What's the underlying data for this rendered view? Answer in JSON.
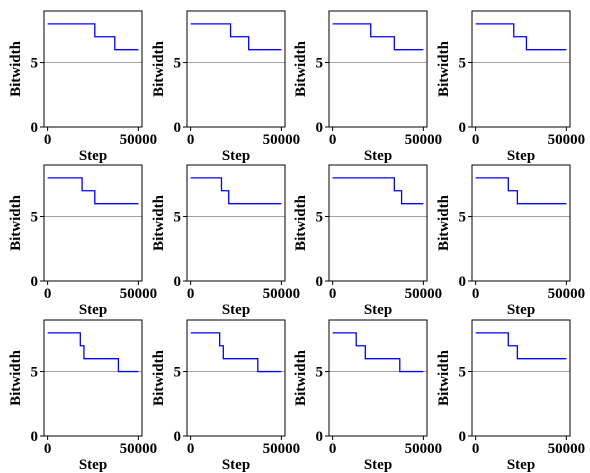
{
  "colors": {
    "step_line": "#0000ff",
    "reference_line": "#a0a0a0",
    "axes": "#000000",
    "background": "#ffffff"
  },
  "layout": {
    "grid": "3x4"
  },
  "chart_data": [
    {
      "type": "line",
      "step": true,
      "xlabel": "Step",
      "ylabel": "Bitwidth",
      "xlim": [
        -2000,
        52000
      ],
      "ylim": [
        0,
        9
      ],
      "xticks": [
        0,
        50000
      ],
      "yticks": [
        0,
        5
      ],
      "reference_y": 5,
      "grid": false,
      "series": [
        {
          "x": [
            0,
            26000,
            26000,
            37000,
            37000,
            50000
          ],
          "y": [
            8,
            8,
            7,
            7,
            6,
            6
          ]
        }
      ]
    },
    {
      "type": "line",
      "step": true,
      "xlabel": "Step",
      "ylabel": "Bitwidth",
      "xlim": [
        -2000,
        52000
      ],
      "ylim": [
        0,
        9
      ],
      "xticks": [
        0,
        50000
      ],
      "yticks": [
        0,
        5
      ],
      "reference_y": 5,
      "grid": false,
      "series": [
        {
          "x": [
            0,
            22000,
            22000,
            32000,
            32000,
            50000
          ],
          "y": [
            8,
            8,
            7,
            7,
            6,
            6
          ]
        }
      ]
    },
    {
      "type": "line",
      "step": true,
      "xlabel": "Step",
      "ylabel": "Bitwidth",
      "xlim": [
        -2000,
        52000
      ],
      "ylim": [
        0,
        9
      ],
      "xticks": [
        0,
        50000
      ],
      "yticks": [
        0,
        5
      ],
      "reference_y": 5,
      "grid": false,
      "series": [
        {
          "x": [
            0,
            21000,
            21000,
            34000,
            34000,
            50000
          ],
          "y": [
            8,
            8,
            7,
            7,
            6,
            6
          ]
        }
      ]
    },
    {
      "type": "line",
      "step": true,
      "xlabel": "Step",
      "ylabel": "Bitwidth",
      "xlim": [
        -2000,
        52000
      ],
      "ylim": [
        0,
        9
      ],
      "xticks": [
        0,
        50000
      ],
      "yticks": [
        0,
        5
      ],
      "reference_y": 5,
      "grid": false,
      "series": [
        {
          "x": [
            0,
            21000,
            21000,
            28000,
            28000,
            50000
          ],
          "y": [
            8,
            8,
            7,
            7,
            6,
            6
          ]
        }
      ]
    },
    {
      "type": "line",
      "step": true,
      "xlabel": "Step",
      "ylabel": "Bitwidth",
      "xlim": [
        -2000,
        52000
      ],
      "ylim": [
        0,
        9
      ],
      "xticks": [
        0,
        50000
      ],
      "yticks": [
        0,
        5
      ],
      "reference_y": 5,
      "grid": false,
      "series": [
        {
          "x": [
            0,
            19000,
            19000,
            26000,
            26000,
            50000
          ],
          "y": [
            8,
            8,
            7,
            7,
            6,
            6
          ]
        }
      ]
    },
    {
      "type": "line",
      "step": true,
      "xlabel": "Step",
      "ylabel": "Bitwidth",
      "xlim": [
        -2000,
        52000
      ],
      "ylim": [
        0,
        9
      ],
      "xticks": [
        0,
        50000
      ],
      "yticks": [
        0,
        5
      ],
      "reference_y": 5,
      "grid": false,
      "series": [
        {
          "x": [
            0,
            17000,
            17000,
            21000,
            21000,
            50000
          ],
          "y": [
            8,
            8,
            7,
            7,
            6,
            6
          ]
        }
      ]
    },
    {
      "type": "line",
      "step": true,
      "xlabel": "Step",
      "ylabel": "Bitwidth",
      "xlim": [
        -2000,
        52000
      ],
      "ylim": [
        0,
        9
      ],
      "xticks": [
        0,
        50000
      ],
      "yticks": [
        0,
        5
      ],
      "reference_y": 5,
      "grid": false,
      "series": [
        {
          "x": [
            0,
            34000,
            34000,
            38000,
            38000,
            50000
          ],
          "y": [
            8,
            8,
            7,
            7,
            6,
            6
          ]
        }
      ]
    },
    {
      "type": "line",
      "step": true,
      "xlabel": "Step",
      "ylabel": "Bitwidth",
      "xlim": [
        -2000,
        52000
      ],
      "ylim": [
        0,
        9
      ],
      "xticks": [
        0,
        50000
      ],
      "yticks": [
        0,
        5
      ],
      "reference_y": 5,
      "grid": false,
      "series": [
        {
          "x": [
            0,
            18000,
            18000,
            23000,
            23000,
            50000
          ],
          "y": [
            8,
            8,
            7,
            7,
            6,
            6
          ]
        }
      ]
    },
    {
      "type": "line",
      "step": true,
      "xlabel": "Step",
      "ylabel": "Bitwidth",
      "xlim": [
        -2000,
        52000
      ],
      "ylim": [
        0,
        9
      ],
      "xticks": [
        0,
        50000
      ],
      "yticks": [
        0,
        5
      ],
      "reference_y": 5,
      "grid": false,
      "series": [
        {
          "x": [
            0,
            18000,
            18000,
            20000,
            20000,
            39000,
            39000,
            50000
          ],
          "y": [
            8,
            8,
            7,
            7,
            6,
            6,
            5,
            5
          ]
        }
      ]
    },
    {
      "type": "line",
      "step": true,
      "xlabel": "Step",
      "ylabel": "Bitwidth",
      "xlim": [
        -2000,
        52000
      ],
      "ylim": [
        0,
        9
      ],
      "xticks": [
        0,
        50000
      ],
      "yticks": [
        0,
        5
      ],
      "reference_y": 5,
      "grid": false,
      "series": [
        {
          "x": [
            0,
            16000,
            16000,
            18000,
            18000,
            37000,
            37000,
            50000
          ],
          "y": [
            8,
            8,
            7,
            7,
            6,
            6,
            5,
            5
          ]
        }
      ]
    },
    {
      "type": "line",
      "step": true,
      "xlabel": "Step",
      "ylabel": "Bitwidth",
      "xlim": [
        -2000,
        52000
      ],
      "ylim": [
        0,
        9
      ],
      "xticks": [
        0,
        50000
      ],
      "yticks": [
        0,
        5
      ],
      "reference_y": 5,
      "grid": false,
      "series": [
        {
          "x": [
            0,
            13000,
            13000,
            18000,
            18000,
            37000,
            37000,
            50000
          ],
          "y": [
            8,
            8,
            7,
            7,
            6,
            6,
            5,
            5
          ]
        }
      ]
    },
    {
      "type": "line",
      "step": true,
      "xlabel": "Step",
      "ylabel": "Bitwidth",
      "xlim": [
        -2000,
        52000
      ],
      "ylim": [
        0,
        9
      ],
      "xticks": [
        0,
        50000
      ],
      "yticks": [
        0,
        5
      ],
      "reference_y": 5,
      "grid": false,
      "series": [
        {
          "x": [
            0,
            18000,
            18000,
            23000,
            23000,
            50000
          ],
          "y": [
            8,
            8,
            7,
            7,
            6,
            6
          ]
        }
      ]
    }
  ]
}
